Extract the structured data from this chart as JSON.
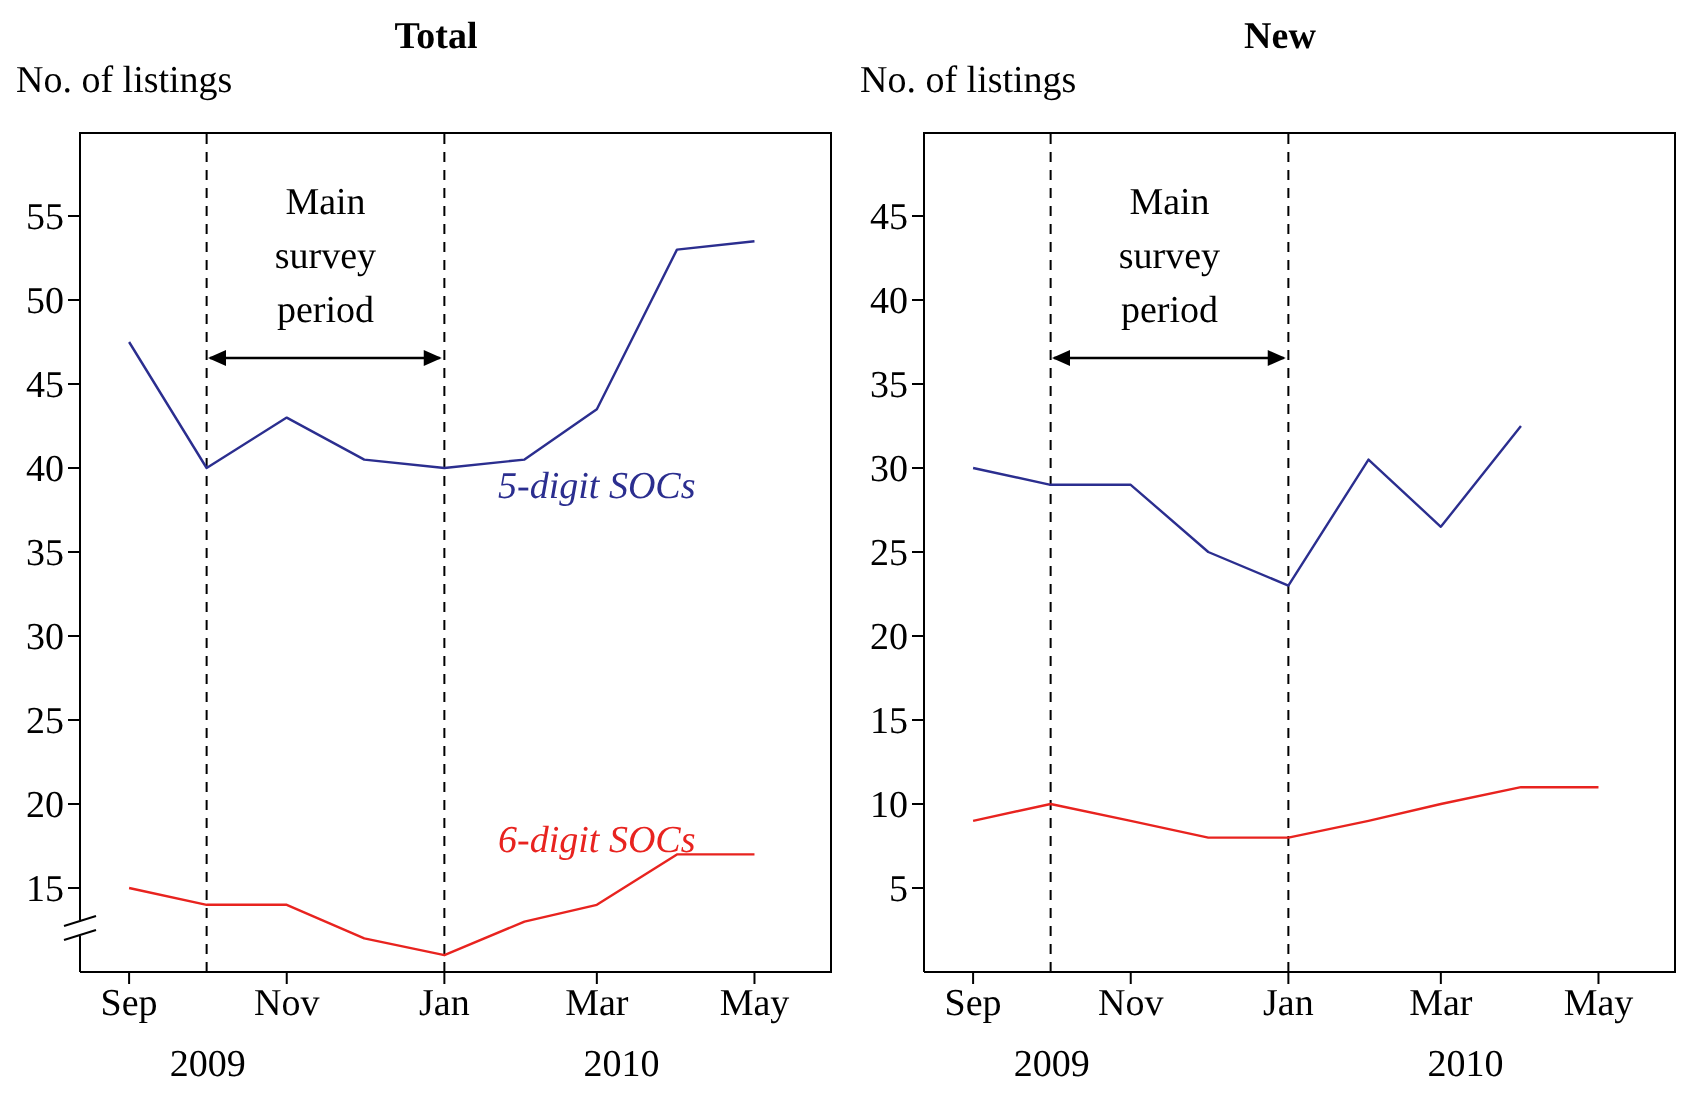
{
  "chart_data": [
    {
      "type": "line",
      "title": "Total",
      "ylabel": "No. of listings",
      "x": [
        "2009-09",
        "2009-10",
        "2009-11",
        "2009-12",
        "2010-01",
        "2010-02",
        "2010-03",
        "2010-04",
        "2010-05"
      ],
      "series": [
        {
          "name": "5-digit SOCs",
          "color": "#2b2e8f",
          "values": [
            47.5,
            40,
            43,
            40.5,
            40,
            40.5,
            43.5,
            53,
            53.5
          ]
        },
        {
          "name": "6-digit SOCs",
          "color": "#e8231f",
          "values": [
            15,
            14,
            14,
            12,
            11,
            13,
            14,
            17,
            17
          ]
        }
      ],
      "xlim": [
        "2009-08-13",
        "2010-05-31"
      ],
      "ylim": [
        10,
        60
      ],
      "xticks": [
        {
          "value": "2009-09",
          "label": "Sep"
        },
        {
          "value": "2009-11",
          "label": "Nov"
        },
        {
          "value": "2010-01",
          "label": "Jan"
        },
        {
          "value": "2010-03",
          "label": "Mar"
        },
        {
          "value": "2010-05",
          "label": "May"
        }
      ],
      "yticks": [
        15,
        20,
        25,
        30,
        35,
        40,
        45,
        50,
        55
      ],
      "ref_lines": [
        {
          "axis": "x",
          "value": "2009-10",
          "line_style": "dashed",
          "color": "#000000"
        },
        {
          "axis": "x",
          "value": "2010-01",
          "line_style": "dashed",
          "color": "#000000"
        }
      ],
      "annotations": [
        "Main survey period",
        "2009",
        "2010"
      ],
      "grid": false,
      "legend": false
    },
    {
      "type": "line",
      "title": "New",
      "ylabel": "No. of listings",
      "x": [
        "2009-09",
        "2009-10",
        "2009-11",
        "2009-12",
        "2010-01",
        "2010-02",
        "2010-03",
        "2010-04",
        "2010-05"
      ],
      "series": [
        {
          "color": "#2b2e8f",
          "values": [
            30,
            29,
            29,
            25,
            23,
            30.5,
            26.5,
            32.5,
            null
          ]
        },
        {
          "color": "#e8231f",
          "values": [
            9,
            10,
            9,
            8,
            8,
            9,
            10,
            11,
            11
          ]
        }
      ],
      "xlim": [
        "2009-08-13",
        "2010-05-31"
      ],
      "ylim": [
        0,
        50
      ],
      "xticks": [
        {
          "value": "2009-09",
          "label": "Sep"
        },
        {
          "value": "2009-11",
          "label": "Nov"
        },
        {
          "value": "2010-01",
          "label": "Jan"
        },
        {
          "value": "2010-03",
          "label": "Mar"
        },
        {
          "value": "2010-05",
          "label": "May"
        }
      ],
      "yticks": [
        5,
        10,
        15,
        20,
        25,
        30,
        35,
        40,
        45
      ],
      "ref_lines": [
        {
          "axis": "x",
          "value": "2009-10",
          "line_style": "dashed",
          "color": "#000000"
        },
        {
          "axis": "x",
          "value": "2010-01",
          "line_style": "dashed",
          "color": "#000000"
        }
      ],
      "annotations": [
        "Main survey period",
        "2009",
        "2010"
      ],
      "grid": false,
      "legend": false
    }
  ]
}
